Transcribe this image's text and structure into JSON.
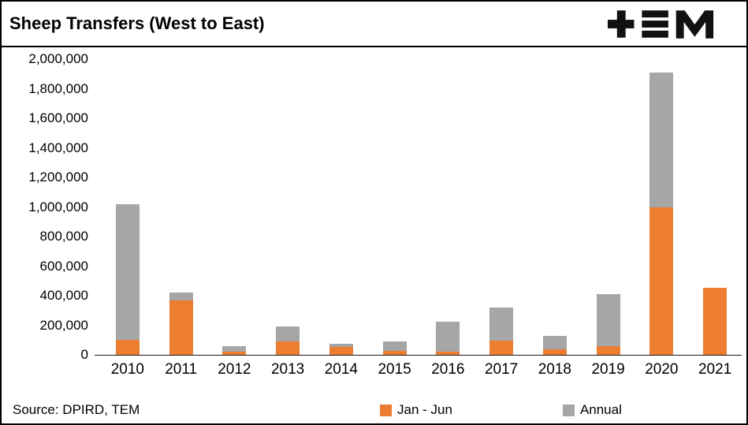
{
  "header": {
    "title": "Sheep Transfers (West to East)",
    "logo": "TEM"
  },
  "footer": {
    "source": "Source: DPIRD, TEM"
  },
  "chart_data": {
    "type": "bar",
    "stacked": true,
    "title": "Sheep Transfers (West to East)",
    "categories": [
      "2010",
      "2011",
      "2012",
      "2013",
      "2014",
      "2015",
      "2016",
      "2017",
      "2018",
      "2019",
      "2020",
      "2021"
    ],
    "series": [
      {
        "name": "Jan - Jun",
        "color": "#ED7D31",
        "values": [
          100000,
          370000,
          20000,
          90000,
          55000,
          25000,
          20000,
          95000,
          35000,
          60000,
          1000000,
          455000
        ]
      },
      {
        "name": "Annual",
        "color": "#A6A6A6",
        "values": [
          1020000,
          420000,
          60000,
          190000,
          75000,
          90000,
          225000,
          320000,
          130000,
          410000,
          1910000,
          455000
        ]
      }
    ],
    "xlabel": "",
    "ylabel": "",
    "ylim": [
      0,
      2000000
    ],
    "ytick_step": 200000,
    "grid": false,
    "legend_position": "bottom",
    "legend": [
      "Jan - Jun",
      "Annual"
    ]
  }
}
